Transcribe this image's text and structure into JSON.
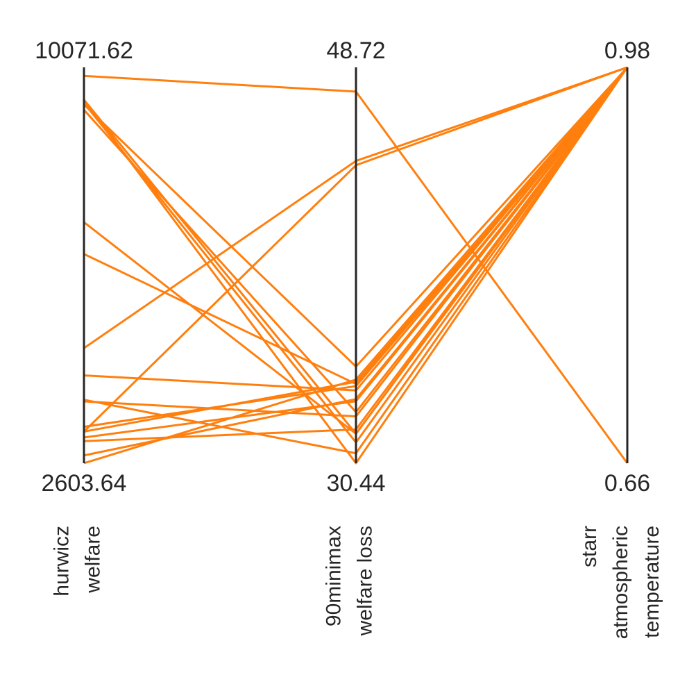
{
  "chart_data": {
    "type": "parallel_coordinates",
    "line_color": "#ff7f0e",
    "axis_color": "#262626",
    "grid": false,
    "axes": [
      {
        "title_lines": [
          "hurwicz",
          "welfare"
        ],
        "max": 10071.62,
        "min": 2603.64,
        "max_label": "10071.62",
        "min_label": "2603.64"
      },
      {
        "title_lines": [
          "90minimax",
          "welfare loss"
        ],
        "max": 48.72,
        "min": 30.44,
        "max_label": "48.72",
        "min_label": "30.44"
      },
      {
        "title_lines": [
          "starr",
          "atmospheric",
          "temperature"
        ],
        "max": 0.98,
        "min": 0.66,
        "max_label": "0.98",
        "min_label": "0.66"
      }
    ],
    "lines": [
      [
        9910,
        47.6,
        0.66
      ],
      [
        4775,
        44.4,
        0.98
      ],
      [
        3200,
        44.2,
        0.98
      ],
      [
        7150,
        31.8,
        0.98
      ],
      [
        6550,
        34.1,
        0.98
      ],
      [
        9370,
        34.9,
        0.98
      ],
      [
        9460,
        31.8,
        0.98
      ],
      [
        4260,
        33.8,
        0.98
      ],
      [
        9270,
        32.8,
        0.98
      ],
      [
        9400,
        31.4,
        0.98
      ],
      [
        3770,
        32.6,
        0.98
      ],
      [
        3200,
        34.2,
        0.98
      ],
      [
        3090,
        33.3,
        0.98
      ],
      [
        3290,
        34.0,
        0.98
      ],
      [
        3020,
        32.0,
        0.98
      ],
      [
        2750,
        33.4,
        0.98
      ],
      [
        2603.64,
        34.3,
        0.98
      ],
      [
        9460,
        30.44,
        0.98
      ],
      [
        3800,
        30.9,
        0.98
      ]
    ]
  }
}
